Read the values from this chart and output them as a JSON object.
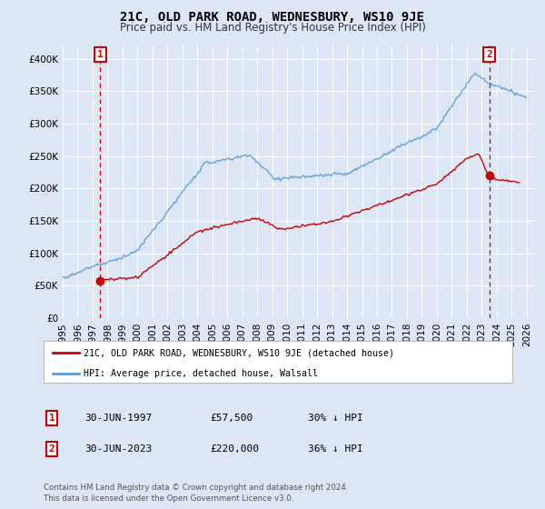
{
  "title": "21C, OLD PARK ROAD, WEDNESBURY, WS10 9JE",
  "subtitle": "Price paid vs. HM Land Registry's House Price Index (HPI)",
  "ylim": [
    0,
    420000
  ],
  "yticks": [
    0,
    50000,
    100000,
    150000,
    200000,
    250000,
    300000,
    350000,
    400000
  ],
  "xlim_start": 1995.0,
  "xlim_end": 2026.5,
  "sale1_x": 1997.5,
  "sale1_y": 57500,
  "sale2_x": 2023.5,
  "sale2_y": 220000,
  "sale_color": "#cc0000",
  "hpi_color": "#5b9bd5",
  "background_color": "#dce6f5",
  "plot_bg_color": "#dce6f5",
  "grid_color": "#ffffff",
  "legend_line1": "21C, OLD PARK ROAD, WEDNESBURY, WS10 9JE (detached house)",
  "legend_line2": "HPI: Average price, detached house, Walsall",
  "annotation1_date": "30-JUN-1997",
  "annotation1_price": "£57,500",
  "annotation1_hpi": "30% ↓ HPI",
  "annotation2_date": "30-JUN-2023",
  "annotation2_price": "£220,000",
  "annotation2_hpi": "36% ↓ HPI",
  "footer": "Contains HM Land Registry data © Crown copyright and database right 2024.\nThis data is licensed under the Open Government Licence v3.0.",
  "title_fontsize": 10,
  "subtitle_fontsize": 8.5,
  "tick_fontsize": 7.5
}
